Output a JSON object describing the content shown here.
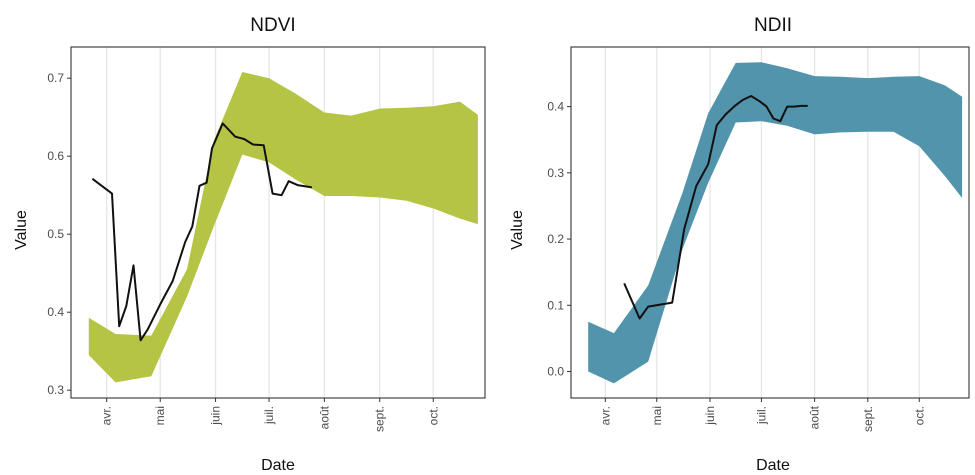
{
  "chart_data": [
    {
      "type": "line",
      "title": "NDVI",
      "xlabel": "Date",
      "ylabel": "Value",
      "x_ticks": [
        "avr.",
        "mai",
        "juin",
        "juil.",
        "août",
        "sept.",
        "oct."
      ],
      "x_tick_dates": [
        "2021-04-01",
        "2021-05-01",
        "2021-06-01",
        "2021-07-01",
        "2021-08-01",
        "2021-09-01",
        "2021-10-01"
      ],
      "y_ticks": [
        "0.3",
        "0.4",
        "0.5",
        "0.6",
        "0.7"
      ],
      "xlim": [
        "2021-03-12",
        "2021-10-30"
      ],
      "ylim": [
        0.29,
        0.74
      ],
      "band_color": "#b5c444",
      "line_color": "#111111",
      "band": {
        "x": [
          "2021-03-22",
          "2021-04-06",
          "2021-04-26",
          "2021-05-16",
          "2021-05-31",
          "2021-06-16",
          "2021-07-01",
          "2021-07-16",
          "2021-08-01",
          "2021-08-16",
          "2021-09-01",
          "2021-09-16",
          "2021-10-01",
          "2021-10-16",
          "2021-10-26"
        ],
        "upper": [
          0.393,
          0.372,
          0.37,
          0.455,
          0.62,
          0.708,
          0.7,
          0.68,
          0.656,
          0.652,
          0.661,
          0.662,
          0.664,
          0.67,
          0.653
        ],
        "lower": [
          0.345,
          0.31,
          0.318,
          0.42,
          0.51,
          0.602,
          0.592,
          0.57,
          0.549,
          0.549,
          0.547,
          0.543,
          0.533,
          0.52,
          0.513
        ]
      },
      "series": [
        {
          "x": [
            "2021-03-24",
            "2021-04-04",
            "2021-04-08",
            "2021-04-12",
            "2021-04-16",
            "2021-04-20",
            "2021-04-24",
            "2021-05-01",
            "2021-05-08",
            "2021-05-15",
            "2021-05-19",
            "2021-05-23",
            "2021-05-27",
            "2021-05-30",
            "2021-06-05",
            "2021-06-12",
            "2021-06-17",
            "2021-06-22",
            "2021-06-28",
            "2021-07-03",
            "2021-07-08",
            "2021-07-12",
            "2021-07-17",
            "2021-07-25"
          ],
          "values": [
            0.571,
            0.552,
            0.382,
            0.408,
            0.46,
            0.364,
            0.378,
            0.41,
            0.44,
            0.49,
            0.51,
            0.562,
            0.566,
            0.61,
            0.642,
            0.625,
            0.622,
            0.615,
            0.614,
            0.552,
            0.55,
            0.568,
            0.563,
            0.56
          ]
        }
      ]
    },
    {
      "type": "line",
      "title": "NDII",
      "xlabel": "Date",
      "ylabel": "Value",
      "x_ticks": [
        "avr.",
        "mai",
        "juin",
        "juil.",
        "août",
        "sept.",
        "oct."
      ],
      "x_tick_dates": [
        "2021-04-01",
        "2021-05-01",
        "2021-06-01",
        "2021-07-01",
        "2021-08-01",
        "2021-09-01",
        "2021-10-01"
      ],
      "y_ticks": [
        "0.0",
        "0.1",
        "0.2",
        "0.3",
        "0.4"
      ],
      "xlim": [
        "2021-03-12",
        "2021-10-30"
      ],
      "ylim": [
        -0.04,
        0.49
      ],
      "band_color": "#5294ab",
      "line_color": "#111111",
      "band": {
        "x": [
          "2021-03-22",
          "2021-04-06",
          "2021-04-26",
          "2021-05-16",
          "2021-05-31",
          "2021-06-16",
          "2021-07-01",
          "2021-07-16",
          "2021-08-01",
          "2021-08-16",
          "2021-09-01",
          "2021-09-16",
          "2021-10-01",
          "2021-10-16",
          "2021-10-26"
        ],
        "upper": [
          0.075,
          0.058,
          0.13,
          0.27,
          0.39,
          0.466,
          0.467,
          0.458,
          0.446,
          0.445,
          0.443,
          0.445,
          0.446,
          0.432,
          0.415
        ],
        "lower": [
          0.0,
          -0.018,
          0.015,
          0.185,
          0.285,
          0.376,
          0.378,
          0.371,
          0.358,
          0.361,
          0.362,
          0.362,
          0.34,
          0.295,
          0.262
        ]
      },
      "series": [
        {
          "x": [
            "2021-04-12",
            "2021-04-21",
            "2021-04-26",
            "2021-05-10",
            "2021-05-17",
            "2021-05-24",
            "2021-05-31",
            "2021-06-05",
            "2021-06-10",
            "2021-06-15",
            "2021-06-20",
            "2021-06-25",
            "2021-06-30",
            "2021-07-04",
            "2021-07-08",
            "2021-07-12",
            "2021-07-16",
            "2021-07-20",
            "2021-07-24",
            "2021-07-28"
          ],
          "values": [
            0.133,
            0.08,
            0.098,
            0.104,
            0.215,
            0.28,
            0.313,
            0.372,
            0.388,
            0.4,
            0.41,
            0.416,
            0.408,
            0.4,
            0.382,
            0.378,
            0.4,
            0.4,
            0.401,
            0.401
          ]
        }
      ]
    }
  ]
}
